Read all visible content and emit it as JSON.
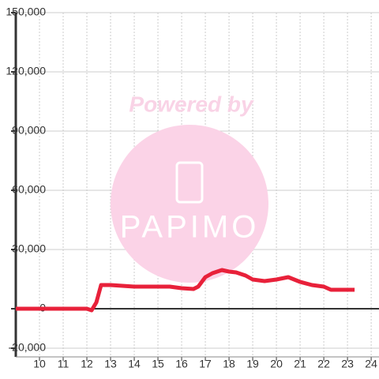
{
  "chart_data": {
    "type": "line",
    "watermark": [
      "Powered by",
      "PAPIMO"
    ],
    "x": [
      9,
      12,
      12.2,
      12.4,
      12.6,
      13,
      14,
      15,
      15.5,
      16,
      16.5,
      16.7,
      17,
      17.3,
      17.7,
      18,
      18.3,
      18.7,
      19,
      19.5,
      20,
      20.5,
      21,
      21.5,
      22,
      22.3,
      23.3
    ],
    "series": [
      {
        "color": "#e8213a",
        "values": [
          0,
          0,
          -800,
          3200,
          12000,
          12000,
          11200,
          11200,
          11200,
          10400,
          10000,
          11200,
          16000,
          18000,
          19600,
          18800,
          18400,
          16800,
          14800,
          14000,
          14800,
          16000,
          13600,
          12000,
          11200,
          9600,
          9600
        ]
      }
    ],
    "xlim": [
      9,
      24.33
    ],
    "xticks": [
      10,
      11,
      12,
      13,
      14,
      15,
      16,
      17,
      18,
      19,
      20,
      21,
      22,
      23,
      24
    ],
    "ylim": [
      -24400,
      150000
    ],
    "yticks": [
      {
        "value": -20000,
        "label": "-20,000"
      },
      0,
      {
        "value": 30000,
        "label": "30,000"
      },
      {
        "value": 60000,
        "label": "60,000"
      },
      {
        "value": 90000,
        "label": "90,000"
      },
      {
        "value": 120000,
        "label": "120,000"
      },
      {
        "value": 150000,
        "label": "150,000"
      }
    ],
    "grid": true
  }
}
